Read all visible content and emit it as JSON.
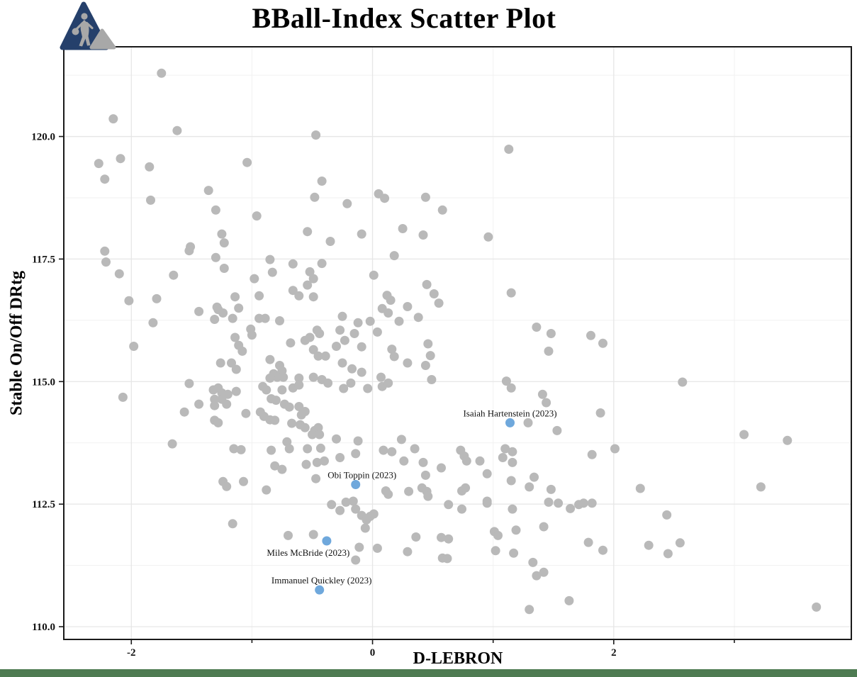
{
  "header": {
    "title": "BBall-Index Scatter Plot"
  },
  "logo": {
    "name": "bball-index-logo",
    "navy": "#25406b",
    "gray": "#a8a8a8"
  },
  "footer": {
    "bar_color": "#4e7b52"
  },
  "chart_data": {
    "type": "scatter",
    "title": "BBall-Index Scatter Plot",
    "xlabel": "D-LEBRON",
    "ylabel": "Stable On/Off DRtg",
    "xlim": [
      -2.56,
      3.97
    ],
    "ylim": [
      109.74,
      121.83
    ],
    "grid": true,
    "x_major_ticks": [
      -2,
      0,
      2
    ],
    "x_tick_labels": [
      "-2",
      "0",
      "2"
    ],
    "x_minor_ticks": [
      -1,
      1,
      3
    ],
    "y_major_ticks": [
      110.0,
      112.5,
      115.0,
      117.5,
      120.0
    ],
    "y_tick_labels": [
      "110.0",
      "112.5",
      "115.0",
      "117.5",
      "120.0"
    ],
    "y_minor_ticks": [
      111.25,
      113.75,
      116.25,
      118.75,
      121.25
    ],
    "point_color": "#b9b9b9",
    "highlight_color": "#6fa8dc",
    "points": [
      [
        -1.75,
        121.29
      ],
      [
        -2.15,
        120.36
      ],
      [
        -1.62,
        120.12
      ],
      [
        -0.47,
        120.03
      ],
      [
        -2.09,
        119.55
      ],
      [
        -2.27,
        119.45
      ],
      [
        -1.85,
        119.38
      ],
      [
        -1.04,
        119.47
      ],
      [
        -2.22,
        119.13
      ],
      [
        -0.42,
        119.09
      ],
      [
        -1.36,
        118.9
      ],
      [
        -0.48,
        118.76
      ],
      [
        -1.84,
        118.7
      ],
      [
        -1.3,
        118.5
      ],
      [
        -0.96,
        118.38
      ],
      [
        -0.54,
        118.06
      ],
      [
        -1.25,
        118.01
      ],
      [
        -1.23,
        117.83
      ],
      [
        -1.51,
        117.75
      ],
      [
        -0.35,
        117.86
      ],
      [
        1.13,
        119.74
      ],
      [
        0.05,
        118.83
      ],
      [
        0.1,
        118.74
      ],
      [
        0.44,
        118.76
      ],
      [
        -0.21,
        118.63
      ],
      [
        0.58,
        118.5
      ],
      [
        0.25,
        118.12
      ],
      [
        -0.09,
        118.01
      ],
      [
        0.42,
        117.99
      ],
      [
        0.96,
        117.95
      ],
      [
        -2.22,
        117.66
      ],
      [
        -1.52,
        117.67
      ],
      [
        -2.21,
        117.44
      ],
      [
        -2.1,
        117.2
      ],
      [
        -1.65,
        117.17
      ],
      [
        -1.3,
        117.53
      ],
      [
        -1.23,
        117.31
      ],
      [
        -0.85,
        117.49
      ],
      [
        -0.83,
        117.23
      ],
      [
        -0.66,
        117.4
      ],
      [
        -0.52,
        117.24
      ],
      [
        -0.42,
        117.41
      ],
      [
        -0.98,
        117.1
      ],
      [
        -0.49,
        117.1
      ],
      [
        -0.54,
        116.97
      ],
      [
        -0.66,
        116.86
      ],
      [
        -0.61,
        116.75
      ],
      [
        -0.49,
        116.73
      ],
      [
        -2.02,
        116.65
      ],
      [
        -1.79,
        116.69
      ],
      [
        -1.44,
        116.43
      ],
      [
        -1.28,
        116.47
      ],
      [
        -1.29,
        116.52
      ],
      [
        -1.24,
        116.4
      ],
      [
        -1.14,
        116.73
      ],
      [
        -1.11,
        116.5
      ],
      [
        -0.94,
        116.75
      ],
      [
        -0.94,
        116.29
      ],
      [
        -0.89,
        116.29
      ],
      [
        -0.77,
        116.24
      ],
      [
        -1.82,
        116.2
      ],
      [
        -1.31,
        116.27
      ],
      [
        -1.16,
        116.29
      ],
      [
        -1.01,
        116.07
      ],
      [
        -1.0,
        115.95
      ],
      [
        -1.14,
        115.9
      ],
      [
        -1.11,
        115.74
      ],
      [
        -1.08,
        115.62
      ],
      [
        -1.98,
        115.72
      ],
      [
        -0.68,
        115.79
      ],
      [
        -0.56,
        115.84
      ],
      [
        -0.52,
        115.9
      ],
      [
        -0.46,
        116.05
      ],
      [
        -0.44,
        115.98
      ],
      [
        -0.49,
        115.65
      ],
      [
        -0.45,
        115.52
      ],
      [
        -0.39,
        115.52
      ],
      [
        -0.85,
        115.45
      ],
      [
        -1.26,
        115.38
      ],
      [
        -1.17,
        115.38
      ],
      [
        -1.13,
        115.25
      ],
      [
        -0.77,
        115.33
      ],
      [
        -0.75,
        115.22
      ],
      [
        -0.82,
        115.16
      ],
      [
        -0.79,
        115.09
      ],
      [
        -0.74,
        115.09
      ],
      [
        -0.85,
        115.07
      ],
      [
        -0.61,
        115.07
      ],
      [
        -0.49,
        115.09
      ],
      [
        -0.42,
        115.04
      ],
      [
        -0.37,
        114.97
      ],
      [
        -1.52,
        114.96
      ],
      [
        -0.91,
        114.9
      ],
      [
        -0.88,
        114.83
      ],
      [
        -0.75,
        114.83
      ],
      [
        -0.66,
        114.87
      ],
      [
        -0.61,
        114.93
      ],
      [
        -1.32,
        114.83
      ],
      [
        -1.28,
        114.87
      ],
      [
        -1.25,
        114.77
      ],
      [
        -1.2,
        114.74
      ],
      [
        -1.13,
        114.8
      ],
      [
        -2.07,
        114.68
      ],
      [
        -0.84,
        114.65
      ],
      [
        -0.8,
        114.62
      ],
      [
        -1.31,
        114.64
      ],
      [
        -1.25,
        114.64
      ],
      [
        -1.44,
        114.54
      ],
      [
        -1.31,
        114.51
      ],
      [
        -1.21,
        114.54
      ],
      [
        -0.73,
        114.54
      ],
      [
        -0.69,
        114.48
      ],
      [
        -0.61,
        114.49
      ],
      [
        -0.56,
        114.39
      ],
      [
        -0.59,
        114.32
      ],
      [
        -1.56,
        114.38
      ],
      [
        -1.05,
        114.35
      ],
      [
        -0.93,
        114.38
      ],
      [
        -0.9,
        114.29
      ],
      [
        -0.85,
        114.22
      ],
      [
        -0.81,
        114.21
      ],
      [
        -1.31,
        114.21
      ],
      [
        -1.28,
        114.16
      ],
      [
        -0.67,
        114.15
      ],
      [
        -0.6,
        114.12
      ],
      [
        -0.56,
        114.06
      ],
      [
        -0.48,
        114.0
      ],
      [
        -0.45,
        114.06
      ],
      [
        -0.5,
        113.92
      ],
      [
        -0.44,
        113.92
      ],
      [
        -0.71,
        113.77
      ],
      [
        -1.66,
        113.73
      ],
      [
        0.18,
        117.57
      ],
      [
        0.01,
        117.17
      ],
      [
        0.45,
        116.98
      ],
      [
        1.15,
        116.81
      ],
      [
        0.12,
        116.76
      ],
      [
        0.15,
        116.66
      ],
      [
        0.51,
        116.79
      ],
      [
        0.55,
        116.6
      ],
      [
        0.29,
        116.53
      ],
      [
        0.08,
        116.49
      ],
      [
        0.13,
        116.4
      ],
      [
        0.38,
        116.31
      ],
      [
        0.22,
        116.23
      ],
      [
        -0.25,
        116.33
      ],
      [
        -0.12,
        116.2
      ],
      [
        -0.02,
        116.23
      ],
      [
        -0.15,
        115.98
      ],
      [
        0.04,
        116.01
      ],
      [
        -0.27,
        116.05
      ],
      [
        -0.23,
        115.84
      ],
      [
        -0.3,
        115.72
      ],
      [
        -0.09,
        115.71
      ],
      [
        0.16,
        115.66
      ],
      [
        0.18,
        115.51
      ],
      [
        0.46,
        115.77
      ],
      [
        0.48,
        115.53
      ],
      [
        0.29,
        115.38
      ],
      [
        0.44,
        115.33
      ],
      [
        -0.25,
        115.38
      ],
      [
        -0.17,
        115.26
      ],
      [
        -0.09,
        115.19
      ],
      [
        0.07,
        115.09
      ],
      [
        0.08,
        114.9
      ],
      [
        0.13,
        114.97
      ],
      [
        -0.18,
        114.97
      ],
      [
        -0.24,
        114.86
      ],
      [
        -0.04,
        114.86
      ],
      [
        0.49,
        115.04
      ],
      [
        1.36,
        116.11
      ],
      [
        1.48,
        115.98
      ],
      [
        1.46,
        115.62
      ],
      [
        1.11,
        115.01
      ],
      [
        1.15,
        114.87
      ],
      [
        1.41,
        114.74
      ],
      [
        1.44,
        114.57
      ],
      [
        1.29,
        114.16
      ],
      [
        1.53,
        114.0
      ],
      [
        1.81,
        115.94
      ],
      [
        1.91,
        115.78
      ],
      [
        -0.3,
        113.83
      ],
      [
        -0.12,
        113.79
      ],
      [
        0.24,
        113.82
      ],
      [
        2.57,
        114.99
      ],
      [
        1.89,
        114.36
      ],
      [
        3.08,
        113.92
      ],
      [
        3.44,
        113.8
      ],
      [
        2.01,
        113.63
      ],
      [
        -1.15,
        113.63
      ],
      [
        -1.09,
        113.61
      ],
      [
        -0.84,
        113.6
      ],
      [
        -0.69,
        113.63
      ],
      [
        -0.54,
        113.63
      ],
      [
        -0.43,
        113.64
      ],
      [
        -0.81,
        113.28
      ],
      [
        -0.75,
        113.21
      ],
      [
        -0.55,
        113.31
      ],
      [
        -0.46,
        113.35
      ],
      [
        -0.4,
        113.38
      ],
      [
        -0.47,
        113.02
      ],
      [
        -1.24,
        112.96
      ],
      [
        -1.21,
        112.86
      ],
      [
        -1.07,
        112.96
      ],
      [
        -0.88,
        112.79
      ],
      [
        -1.16,
        112.1
      ],
      [
        -0.7,
        111.86
      ],
      [
        -0.49,
        111.88
      ],
      [
        -0.27,
        113.45
      ],
      [
        -0.14,
        113.53
      ],
      [
        0.09,
        113.6
      ],
      [
        0.16,
        113.57
      ],
      [
        0.26,
        113.38
      ],
      [
        0.35,
        113.63
      ],
      [
        0.42,
        113.35
      ],
      [
        0.44,
        113.09
      ],
      [
        0.57,
        113.24
      ],
      [
        0.73,
        113.6
      ],
      [
        0.76,
        113.48
      ],
      [
        0.78,
        113.38
      ],
      [
        0.89,
        113.38
      ],
      [
        0.95,
        113.12
      ],
      [
        1.08,
        113.45
      ],
      [
        1.1,
        113.63
      ],
      [
        1.16,
        113.57
      ],
      [
        1.16,
        113.35
      ],
      [
        1.15,
        112.98
      ],
      [
        1.34,
        113.05
      ],
      [
        1.3,
        112.85
      ],
      [
        1.48,
        112.8
      ],
      [
        0.11,
        112.77
      ],
      [
        0.13,
        112.7
      ],
      [
        0.3,
        112.76
      ],
      [
        0.41,
        112.83
      ],
      [
        0.45,
        112.76
      ],
      [
        0.46,
        112.66
      ],
      [
        0.74,
        112.77
      ],
      [
        0.77,
        112.83
      ],
      [
        0.63,
        112.49
      ],
      [
        0.74,
        112.4
      ],
      [
        0.95,
        112.56
      ],
      [
        0.95,
        112.52
      ],
      [
        1.16,
        112.4
      ],
      [
        1.46,
        112.54
      ],
      [
        1.54,
        112.52
      ],
      [
        1.64,
        112.41
      ],
      [
        1.71,
        112.49
      ],
      [
        1.75,
        112.52
      ],
      [
        -0.34,
        112.49
      ],
      [
        -0.27,
        112.37
      ],
      [
        -0.22,
        112.54
      ],
      [
        -0.16,
        112.56
      ],
      [
        -0.14,
        112.4
      ],
      [
        -0.09,
        112.27
      ],
      [
        -0.05,
        112.18
      ],
      [
        -0.02,
        112.25
      ],
      [
        0.01,
        112.3
      ],
      [
        -0.06,
        112.01
      ],
      [
        0.36,
        111.83
      ],
      [
        0.57,
        111.82
      ],
      [
        0.63,
        111.79
      ],
      [
        1.01,
        111.94
      ],
      [
        1.04,
        111.86
      ],
      [
        1.19,
        111.97
      ],
      [
        1.42,
        112.04
      ],
      [
        -0.11,
        111.62
      ],
      [
        0.04,
        111.6
      ],
      [
        0.29,
        111.53
      ],
      [
        -0.14,
        111.36
      ],
      [
        0.58,
        111.4
      ],
      [
        0.62,
        111.39
      ],
      [
        1.02,
        111.55
      ],
      [
        1.17,
        111.5
      ],
      [
        1.33,
        111.31
      ],
      [
        1.36,
        111.04
      ],
      [
        1.42,
        111.11
      ],
      [
        1.63,
        110.53
      ],
      [
        1.3,
        110.35
      ],
      [
        1.82,
        113.51
      ],
      [
        2.22,
        112.82
      ],
      [
        3.22,
        112.85
      ],
      [
        1.82,
        112.52
      ],
      [
        2.44,
        112.28
      ],
      [
        1.79,
        111.72
      ],
      [
        1.91,
        111.56
      ],
      [
        2.29,
        111.66
      ],
      [
        2.55,
        111.71
      ],
      [
        2.45,
        111.49
      ],
      [
        3.68,
        110.4
      ]
    ],
    "highlighted_points": [
      {
        "label": "Isaiah Hartenstein (2023)",
        "x": 1.14,
        "y": 114.16,
        "label_position": "above",
        "label_dx": 0
      },
      {
        "label": "Obi Toppin (2023)",
        "x": -0.14,
        "y": 112.9,
        "label_position": "above",
        "label_dx": 9
      },
      {
        "label": "Miles McBride (2023)",
        "x": -0.38,
        "y": 111.75,
        "label_position": "below",
        "label_dx": -26
      },
      {
        "label": "Immanuel Quickley (2023)",
        "x": -0.44,
        "y": 110.75,
        "label_position": "above",
        "label_dx": 3
      }
    ]
  }
}
